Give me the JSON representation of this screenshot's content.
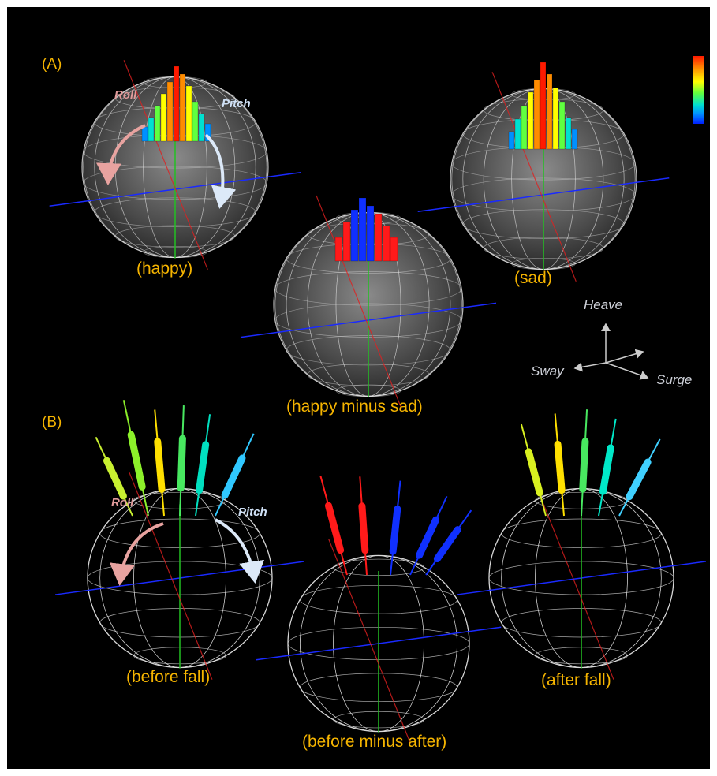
{
  "sections": {
    "a": "(A)",
    "b": "(B)"
  },
  "captions": {
    "happy": "(happy)",
    "sad": "(sad)",
    "happy_minus_sad": "(happy minus sad)",
    "before_fall": "(before fall)",
    "after_fall": "(after fall)",
    "before_minus_after": "(before minus after)"
  },
  "rotation_labels": {
    "roll": "Roll",
    "pitch": "Pitch"
  },
  "axes_legend": {
    "heave": "Heave",
    "sway": "Sway",
    "surge": "Surge"
  },
  "colors": {
    "caption": "#f5b400",
    "roll_arrow": "#e8a3a0",
    "pitch_arrow": "#dce9f8",
    "axis_blue": "#1a2aff",
    "axis_green": "#22c022",
    "axis_red": "#e02020",
    "difference_positive": "#ff1a1a",
    "difference_negative": "#1030ff"
  },
  "colorbar": {
    "gradient": [
      "#ff1a00",
      "#ff8c00",
      "#ffff00",
      "#60ff40",
      "#00e0d0",
      "#0090ff",
      "#0020ff"
    ]
  }
}
